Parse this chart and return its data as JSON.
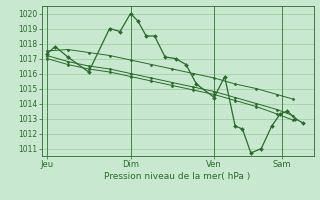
{
  "background_color": "#c8e8d0",
  "grid_color": "#99cc99",
  "line_color": "#2a6b2a",
  "xlabel": "Pression niveau de la mer( hPa )",
  "ylim": [
    1010.5,
    1020.5
  ],
  "yticks": [
    1011,
    1012,
    1013,
    1014,
    1015,
    1016,
    1017,
    1018,
    1019,
    1020
  ],
  "day_labels": [
    "Jeu",
    "Dim",
    "Ven",
    "Sam"
  ],
  "day_positions": [
    35,
    115,
    195,
    260
  ],
  "xlim": [
    30,
    290
  ],
  "s0_x": [
    35,
    55,
    75,
    95,
    115,
    135,
    155,
    175,
    195,
    215,
    235,
    255,
    270
  ],
  "s0_y": [
    1017.5,
    1017.6,
    1017.4,
    1017.2,
    1016.9,
    1016.6,
    1016.3,
    1016.0,
    1015.7,
    1015.3,
    1015.0,
    1014.6,
    1014.3
  ],
  "s1_x": [
    35,
    55,
    75,
    95,
    115,
    135,
    155,
    175,
    195,
    215,
    235,
    255,
    270
  ],
  "s1_y": [
    1017.2,
    1016.8,
    1016.5,
    1016.3,
    1016.0,
    1015.7,
    1015.4,
    1015.1,
    1014.8,
    1014.4,
    1014.0,
    1013.6,
    1013.2
  ],
  "s2_x": [
    35,
    55,
    75,
    95,
    115,
    135,
    155,
    175,
    195,
    215,
    235,
    255,
    270
  ],
  "s2_y": [
    1017.0,
    1016.6,
    1016.3,
    1016.1,
    1015.8,
    1015.5,
    1015.2,
    1014.9,
    1014.6,
    1014.2,
    1013.8,
    1013.3,
    1012.9
  ],
  "s3_x": [
    35,
    43,
    55,
    75,
    95,
    105,
    115,
    122,
    130,
    138,
    148,
    158,
    168,
    178,
    195,
    205,
    215,
    222,
    230,
    240,
    250,
    258,
    265,
    272,
    280
  ],
  "s3_y": [
    1017.3,
    1017.8,
    1017.1,
    1016.1,
    1019.0,
    1018.8,
    1020.0,
    1019.5,
    1018.5,
    1018.5,
    1017.1,
    1017.0,
    1016.6,
    1015.3,
    1014.4,
    1015.8,
    1012.5,
    1012.3,
    1010.7,
    1011.0,
    1012.5,
    1013.3,
    1013.5,
    1013.0,
    1012.7
  ]
}
